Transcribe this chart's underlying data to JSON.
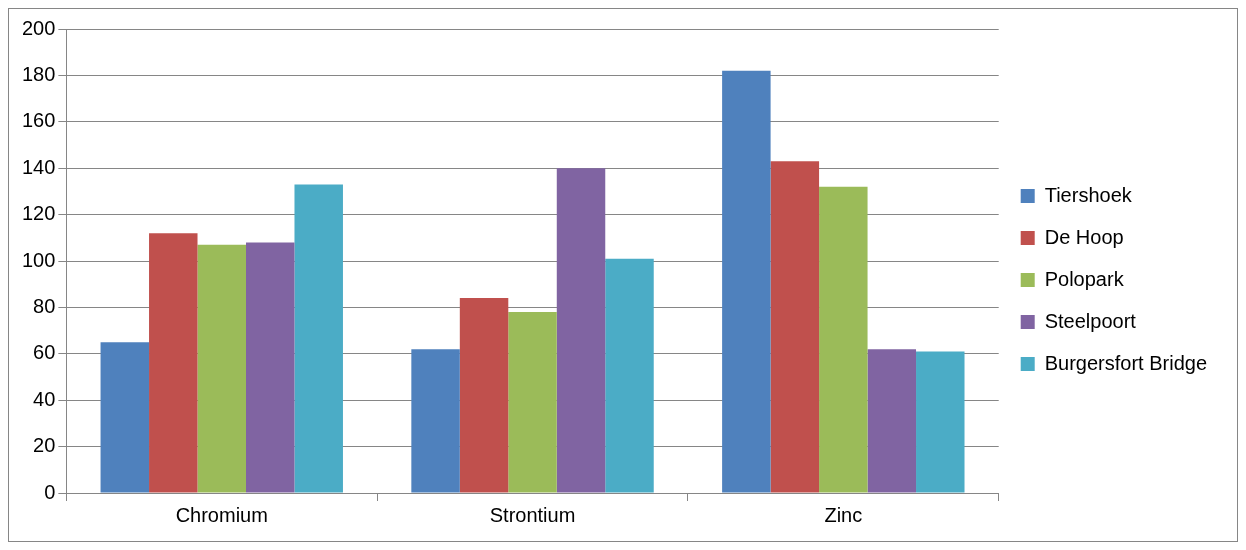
{
  "chart_data": {
    "type": "bar",
    "categories": [
      "Chromium",
      "Strontium",
      "Zinc"
    ],
    "series": [
      {
        "name": "Tiershoek",
        "color": "#4f81bd",
        "values": [
          65,
          62,
          182
        ]
      },
      {
        "name": "De Hoop",
        "color": "#c0504d",
        "values": [
          112,
          84,
          143
        ]
      },
      {
        "name": "Polopark",
        "color": "#9bbb59",
        "values": [
          107,
          78,
          132
        ]
      },
      {
        "name": "Steelpoort",
        "color": "#8064a2",
        "values": [
          108,
          140,
          62
        ]
      },
      {
        "name": "Burgersfort Bridge",
        "color": "#4bacc6",
        "values": [
          133,
          101,
          61
        ]
      }
    ],
    "ylim": [
      0,
      200
    ],
    "yticks": [
      0,
      20,
      40,
      60,
      80,
      100,
      120,
      140,
      160,
      180,
      200
    ],
    "grid": "y",
    "legend": "right"
  }
}
